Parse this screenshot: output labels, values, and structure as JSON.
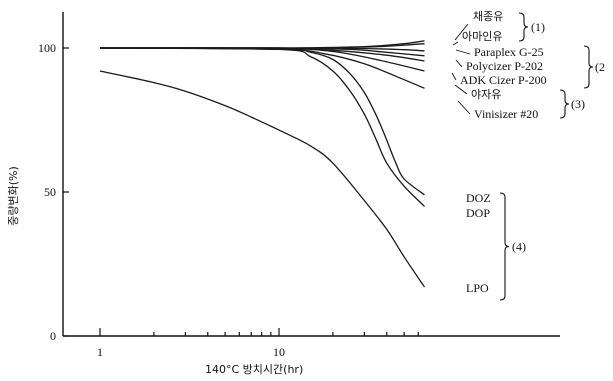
{
  "chart_data": {
    "type": "line",
    "xlabel": "140°C 방치시간(hr)",
    "ylabel": "중량변화(%)",
    "x_scale": "log",
    "xlim": [
      0.6,
      75
    ],
    "ylim": [
      0,
      110
    ],
    "x_ticks": [
      {
        "value": 1,
        "label": "1"
      },
      {
        "value": 10,
        "label": "10"
      }
    ],
    "y_ticks": [
      {
        "value": 0,
        "label": "0"
      },
      {
        "value": 50,
        "label": "50"
      },
      {
        "value": 100,
        "label": "100"
      }
    ],
    "grid": false,
    "series": [
      {
        "name": "채종유",
        "x": [
          1,
          10,
          30,
          50,
          65
        ],
        "y": [
          100,
          100,
          100.5,
          101.5,
          102.5
        ]
      },
      {
        "name": "아마인유",
        "x": [
          1,
          10,
          30,
          50,
          65
        ],
        "y": [
          100,
          100,
          100.3,
          101,
          101.5
        ]
      },
      {
        "name": "Paraplex G-25",
        "x": [
          1,
          10,
          30,
          50,
          65
        ],
        "y": [
          100,
          100,
          99.8,
          99.4,
          99.0
        ]
      },
      {
        "name": "Polycizer P-202",
        "x": [
          1,
          10,
          25,
          40,
          65
        ],
        "y": [
          100,
          100,
          99.5,
          98.5,
          97.3
        ]
      },
      {
        "name": "ADK Cizer P-200",
        "x": [
          1,
          10,
          20,
          40,
          65
        ],
        "y": [
          100,
          100,
          99.2,
          97.5,
          95.5
        ]
      },
      {
        "name": "야자유",
        "x": [
          1,
          10,
          20,
          35,
          65
        ],
        "y": [
          100,
          99.8,
          98.8,
          96,
          92
        ]
      },
      {
        "name": "Vinisizer #20",
        "x": [
          1,
          10,
          18,
          30,
          50,
          65
        ],
        "y": [
          100,
          99.5,
          98,
          94.5,
          89,
          86
        ]
      },
      {
        "name": "DOZ",
        "x": [
          1,
          10,
          15,
          20,
          25,
          30,
          35,
          40,
          45,
          50,
          65
        ],
        "y": [
          100,
          99.7,
          98.5,
          96,
          91,
          84.5,
          76.5,
          68,
          60,
          54.5,
          49
        ]
      },
      {
        "name": "DOP",
        "x": [
          1,
          10,
          15,
          20,
          25,
          30,
          35,
          40,
          50,
          65
        ],
        "y": [
          100,
          99.5,
          97,
          92,
          85,
          77,
          68,
          60,
          52,
          45
        ]
      },
      {
        "name": "LPO",
        "x": [
          1,
          2,
          3,
          5,
          7,
          10,
          15,
          20,
          30,
          40,
          50,
          65
        ],
        "y": [
          92,
          88,
          85,
          80,
          76,
          71.5,
          66,
          60,
          47,
          37,
          27.5,
          17
        ]
      }
    ],
    "groups": [
      {
        "label": "(1)",
        "members": [
          "채종유",
          "아마인유"
        ]
      },
      {
        "label": "(2",
        "members": [
          "Paraplex G-25",
          "Polycizer P-202",
          "ADK Cizer P-200"
        ]
      },
      {
        "label": "(3)",
        "members": [
          "야자유",
          "Vinisizer #20"
        ]
      },
      {
        "label": "(4)",
        "members": [
          "DOZ",
          "DOP",
          "LPO"
        ]
      }
    ]
  }
}
